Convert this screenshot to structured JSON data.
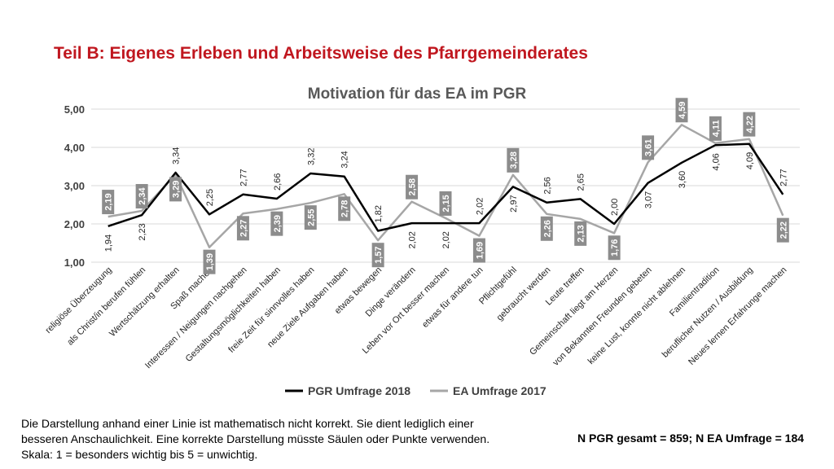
{
  "slide": {
    "title": "Teil B: Eigenes Erleben und Arbeitsweise des Pfarrgemeinderates",
    "note_lines": [
      "Die Darstellung anhand einer Linie ist mathematisch nicht korrekt. Sie dient lediglich einer",
      "besseren Anschaulichkeit. Eine korrekte Darstellung müsste Säulen oder Punkte verwenden.",
      "Skala: 1 = besonders wichtig bis 5 = unwichtig."
    ],
    "sample_size": "N PGR gesamt = 859; N EA Umfrage = 184"
  },
  "colors": {
    "title_red": "#c0171f",
    "series_pgr": "#000000",
    "series_ea": "#a6a6a6",
    "label_box_ea": "#8c8c8c",
    "gridline": "#d9d9d9",
    "text": "#404040"
  },
  "chart_data": {
    "type": "line",
    "title": "Motivation für das EA im PGR",
    "xlabel": "",
    "ylabel": "",
    "ylim": [
      1,
      5
    ],
    "yticks": [
      "1,00",
      "2,00",
      "3,00",
      "4,00",
      "5,00"
    ],
    "grid": true,
    "legend_position": "bottom",
    "categories": [
      "religiöse Überzeugung",
      "als Christ/in berufen fühlen",
      "Wertschätzung erhalten",
      "Spaß machen",
      "Interessen / Neigungen nachgehen",
      "Gestaltungsmöglichkeiten haben",
      "freie Zeit für sinnvolles haben",
      "neue Ziele Aufgaben haben",
      "etwas bewegen",
      "Dinge verändern",
      "Leben vor Ort besser machen",
      "etwas für andere tun",
      "Pflichtgefühl",
      "gebraucht werden",
      "Leute treffen",
      "Gemeinschaft liegt am Herzen",
      "von Bekannten Freunden gebeten",
      "keine Lust, konnte nicht ablehnen",
      "Familientradition",
      "beruflicher Nutzen / Ausbildung",
      "Neues lernen Erfahrunge machen"
    ],
    "series": [
      {
        "name": "PGR Umfrage 2018",
        "values": [
          1.94,
          2.23,
          3.34,
          2.25,
          2.77,
          2.66,
          3.32,
          3.24,
          1.82,
          2.02,
          2.02,
          2.02,
          2.97,
          2.56,
          2.65,
          2.0,
          3.07,
          3.6,
          4.06,
          4.09,
          2.77
        ],
        "labels": [
          "1,94",
          "2,23",
          "3,34",
          "2,25",
          "2,77",
          "2,66",
          "3,32",
          "3,24",
          "1,82",
          "2,02",
          "2,02",
          "2,02",
          "2,97",
          "2,56",
          "2,65",
          "2,00",
          "3,07",
          "3,60",
          "4,06",
          "4,09",
          "2,77"
        ]
      },
      {
        "name": "EA Umfrage 2017",
        "values": [
          2.19,
          2.34,
          3.29,
          1.39,
          2.27,
          2.39,
          2.55,
          2.78,
          1.57,
          2.58,
          2.15,
          1.69,
          3.28,
          2.26,
          2.13,
          1.76,
          3.61,
          4.59,
          4.11,
          4.22,
          2.22
        ],
        "labels": [
          "2,19",
          "2,34",
          "3,29",
          "1,39",
          "2,27",
          "2,39",
          "2,55",
          "2,78",
          "1,57",
          "2,58",
          "2,15",
          "1,69",
          "3,28",
          "2,26",
          "2,13",
          "1,76",
          "3,61",
          "4,59",
          "4,11",
          "4,22",
          "2,22"
        ]
      }
    ]
  }
}
